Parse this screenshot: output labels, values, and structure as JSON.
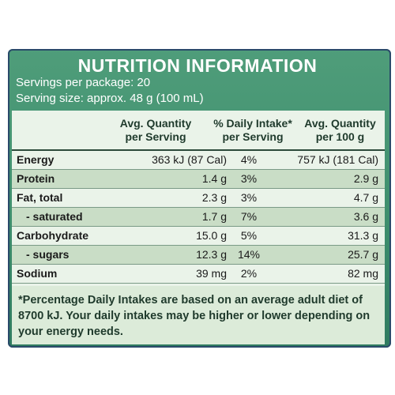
{
  "panel": {
    "title": "NUTRITION INFORMATION",
    "servings_per_package": "Servings per package: 20",
    "serving_size": "Serving size: approx. 48 g (100 mL)"
  },
  "table": {
    "headers": [
      "Avg. Quantity\nper Serving",
      "% Daily Intake*\nper Serving",
      "Avg. Quantity\nper 100 g"
    ],
    "rows": [
      {
        "name": "Energy",
        "per_serving": "363 kJ (87 Cal)",
        "daily_intake": "4%",
        "per_100g": "757 kJ (181 Cal)"
      },
      {
        "name": "Protein",
        "per_serving": "1.4 g",
        "daily_intake": "3%",
        "per_100g": "2.9 g"
      },
      {
        "name": "Fat, total",
        "per_serving": "2.3 g",
        "daily_intake": "3%",
        "per_100g": "4.7 g"
      },
      {
        "name": "- saturated",
        "per_serving": "1.7 g",
        "daily_intake": "7%",
        "per_100g": "3.6 g"
      },
      {
        "name": "Carbohydrate",
        "per_serving": "15.0 g",
        "daily_intake": "5%",
        "per_100g": "31.3 g"
      },
      {
        "name": "- sugars",
        "per_serving": "12.3 g",
        "daily_intake": "14%",
        "per_100g": "25.7 g"
      },
      {
        "name": "Sodium",
        "per_serving": "39 mg",
        "daily_intake": "2%",
        "per_100g": "82 mg"
      }
    ]
  },
  "footnote": "*Percentage Daily Intakes are based on an average adult diet of 8700 kJ. Your daily intakes may be higher or lower depending on your energy needs.",
  "colors": {
    "panel_green": "#3f8f6e",
    "table_light": "#eaf3e9",
    "row_shade": "#c9ddc6"
  }
}
